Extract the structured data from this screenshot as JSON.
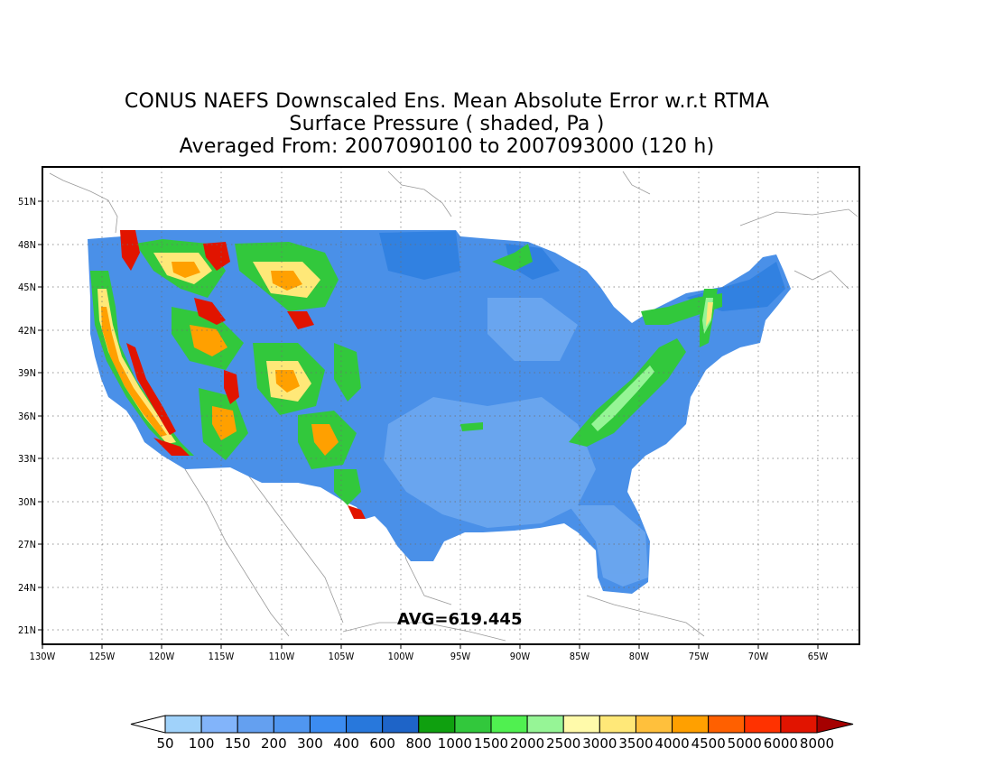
{
  "title": {
    "line1": "CONUS NAEFS Downscaled Ens. Mean Absolute Error w.r.t RTMA",
    "line2": "Surface Pressure ( shaded, Pa )",
    "line3": "Averaged From: 2007090100 to 2007093000 (120 h)"
  },
  "avg_label": "AVG=619.445",
  "lat_ticks": [
    "51N",
    "48N",
    "45N",
    "42N",
    "39N",
    "36N",
    "33N",
    "30N",
    "27N",
    "24N",
    "21N"
  ],
  "lon_ticks": [
    "130W",
    "125W",
    "120W",
    "115W",
    "110W",
    "105W",
    "100W",
    "95W",
    "90W",
    "85W",
    "80W",
    "75W",
    "70W",
    "65W"
  ],
  "colorbar": {
    "labels": [
      "50",
      "100",
      "150",
      "200",
      "300",
      "400",
      "600",
      "800",
      "1000",
      "1500",
      "2000",
      "2500",
      "3000",
      "3500",
      "4000",
      "4500",
      "5000",
      "6000",
      "8000"
    ],
    "colors": [
      "#ffffff",
      "#a0d2fa",
      "#82b4fa",
      "#64a0f0",
      "#5096f0",
      "#3c8cf0",
      "#2878dc",
      "#1e64c8",
      "#0fa00f",
      "#32c83c",
      "#50f050",
      "#96f596",
      "#fffaaa",
      "#ffe878",
      "#ffc03c",
      "#ffa000",
      "#ff6000",
      "#ff3200",
      "#e11400",
      "#a50000"
    ]
  },
  "map_colors": {
    "background_fill": "#4a90e8",
    "light_fill": "#6fa9f0",
    "mid_fill": "#3c8cf0",
    "dark_fill": "#2878dc",
    "green": "#32c83c",
    "light_green": "#96f596",
    "yellow": "#ffe878",
    "orange": "#ffa000",
    "red": "#ff3200",
    "dark_red": "#e11400"
  }
}
